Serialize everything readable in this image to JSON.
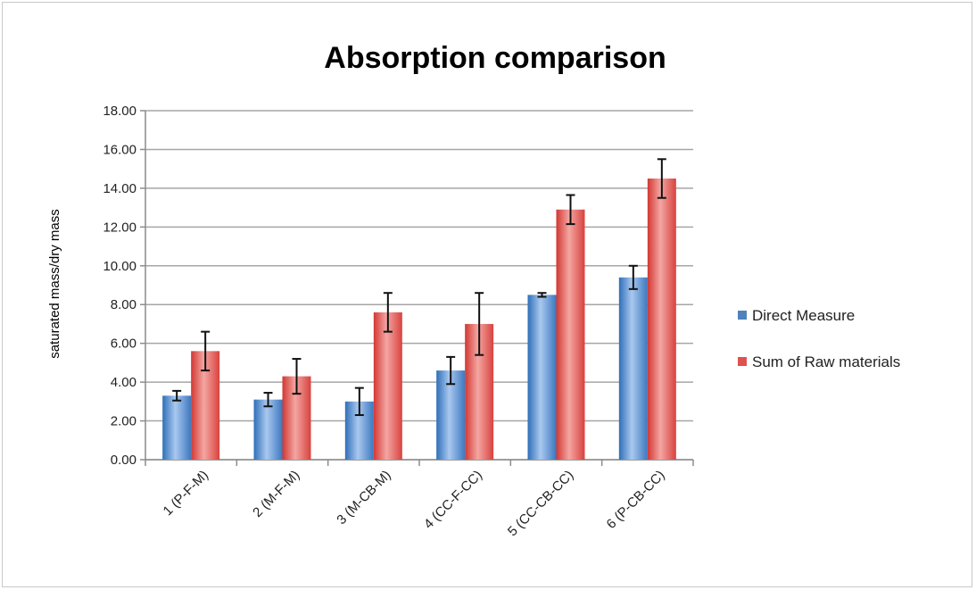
{
  "chart_data": {
    "type": "bar",
    "title": "Absorption comparison",
    "xlabel": "",
    "ylabel": "saturated mass/dry mass",
    "ylim": [
      0,
      18
    ],
    "yticks": [
      "0.00",
      "2.00",
      "4.00",
      "6.00",
      "8.00",
      "10.00",
      "12.00",
      "14.00",
      "16.00",
      "18.00"
    ],
    "categories": [
      "1 (P-F-M)",
      "2 (M-F-M)",
      "3 (M-CB-M)",
      "4 (CC-F-CC)",
      "5 (CC-CB-CC)",
      "6 (P-CB-CC)"
    ],
    "series": [
      {
        "name": "Direct Measure",
        "color": "#4f81bd",
        "values": [
          3.3,
          3.1,
          3.0,
          4.6,
          8.5,
          9.4
        ],
        "errors": [
          0.25,
          0.35,
          0.7,
          0.7,
          0.1,
          0.6
        ]
      },
      {
        "name": "Sum of Raw materials",
        "color": "#e0524f",
        "values": [
          5.6,
          4.3,
          7.6,
          7.0,
          12.9,
          14.5
        ],
        "errors": [
          1.0,
          0.9,
          1.0,
          1.6,
          0.75,
          1.0
        ]
      }
    ],
    "grid": true,
    "legend_position": "right"
  }
}
